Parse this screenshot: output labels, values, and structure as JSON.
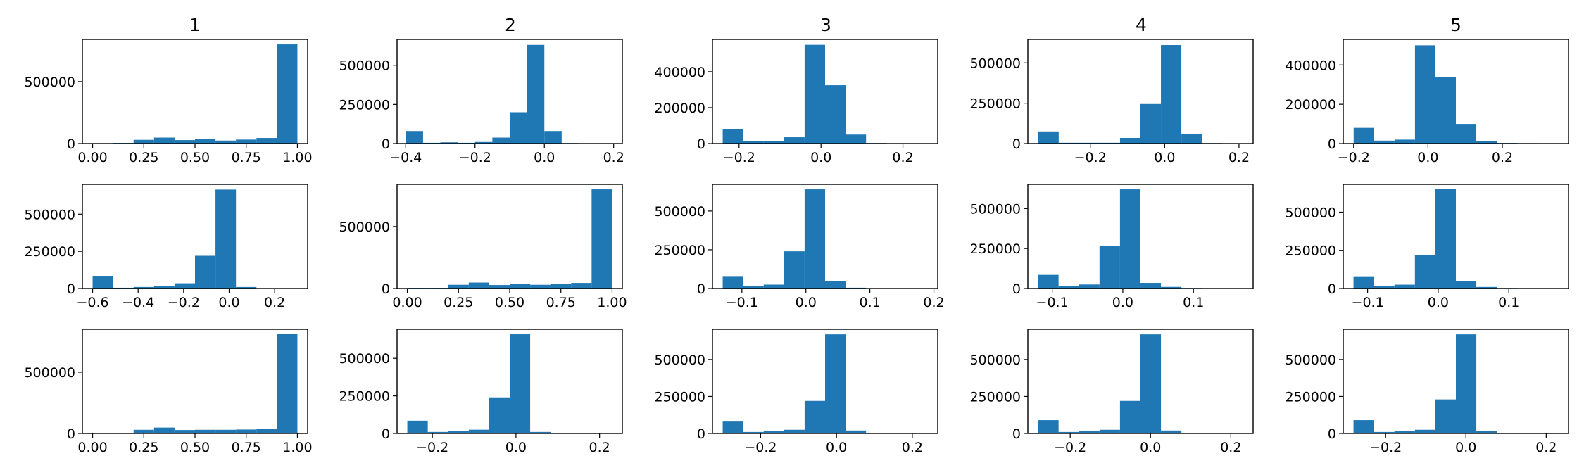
{
  "figure": {
    "column_titles": [
      "1",
      "2",
      "3",
      "4",
      "5"
    ]
  },
  "bar_color": "#1f77b4",
  "chart_data": [
    {
      "type": "bar",
      "row": 0,
      "col": 0,
      "title": "1",
      "edges": [
        0.0,
        0.1,
        0.2,
        0.3,
        0.4,
        0.5,
        0.6,
        0.7,
        0.8,
        0.9,
        1.0
      ],
      "values": [
        3000,
        5000,
        30000,
        48000,
        28000,
        38000,
        24000,
        32000,
        45000,
        800000
      ],
      "xlim": [
        -0.05,
        1.05
      ],
      "ylim": [
        0,
        840000
      ],
      "xticks": [
        0.0,
        0.25,
        0.5,
        0.75,
        1.0
      ],
      "xtick_labels": [
        "0.00",
        "0.25",
        "0.50",
        "0.75",
        "1.00"
      ],
      "yticks": [
        0,
        500000
      ],
      "ytick_labels": [
        "0",
        "500000"
      ]
    },
    {
      "type": "bar",
      "row": 0,
      "col": 1,
      "title": "2",
      "edges": [
        -0.4,
        -0.35,
        -0.3,
        -0.25,
        -0.2,
        -0.15,
        -0.1,
        -0.05,
        0.0,
        0.05,
        0.1
      ],
      "values": [
        80000,
        5000,
        8000,
        5000,
        10000,
        38000,
        200000,
        630000,
        80000,
        3000
      ],
      "xlim": [
        -0.425,
        0.225
      ],
      "ylim": [
        0,
        665000
      ],
      "xticks": [
        -0.4,
        -0.2,
        0.0,
        0.2
      ],
      "xtick_labels": [
        "−0.4",
        "−0.2",
        "0.0",
        "0.2"
      ],
      "yticks": [
        0,
        250000,
        500000
      ],
      "ytick_labels": [
        "0",
        "250000",
        "500000"
      ]
    },
    {
      "type": "bar",
      "row": 0,
      "col": 2,
      "title": "3",
      "edges": [
        -0.24,
        -0.19,
        -0.14,
        -0.09,
        -0.04,
        0.01,
        0.06,
        0.11,
        0.16,
        0.21,
        0.26
      ],
      "values": [
        80000,
        12000,
        12000,
        35000,
        550000,
        325000,
        50000,
        3000,
        2000,
        1000
      ],
      "xlim": [
        -0.265,
        0.285
      ],
      "ylim": [
        0,
        580000
      ],
      "xticks": [
        -0.2,
        0.0,
        0.2
      ],
      "xtick_labels": [
        "−0.2",
        "0.0",
        "0.2"
      ],
      "yticks": [
        0,
        200000,
        400000
      ],
      "ytick_labels": [
        "0",
        "200000",
        "400000"
      ]
    },
    {
      "type": "bar",
      "row": 0,
      "col": 3,
      "title": "4",
      "edges": [
        -0.34,
        -0.285,
        -0.23,
        -0.175,
        -0.12,
        -0.065,
        -0.01,
        0.045,
        0.1,
        0.155,
        0.21
      ],
      "values": [
        75000,
        5000,
        5000,
        5000,
        35000,
        245000,
        610000,
        60000,
        3000,
        2000
      ],
      "xlim": [
        -0.368,
        0.238
      ],
      "ylim": [
        0,
        645000
      ],
      "xticks": [
        -0.2,
        0.0,
        0.2
      ],
      "xtick_labels": [
        "−0.2",
        "0.0",
        "0.2"
      ],
      "yticks": [
        0,
        250000,
        500000
      ],
      "ytick_labels": [
        "0",
        "250000",
        "500000"
      ]
    },
    {
      "type": "bar",
      "row": 0,
      "col": 4,
      "title": "5",
      "edges": [
        -0.2,
        -0.145,
        -0.09,
        -0.035,
        0.02,
        0.075,
        0.13,
        0.185,
        0.24,
        0.295,
        0.35
      ],
      "values": [
        80000,
        15000,
        20000,
        500000,
        340000,
        100000,
        12000,
        3000,
        2000,
        1000
      ],
      "xlim": [
        -0.228,
        0.378
      ],
      "ylim": [
        0,
        530000
      ],
      "xticks": [
        -0.2,
        0.0,
        0.2
      ],
      "xtick_labels": [
        "−0.2",
        "0.0",
        "0.2"
      ],
      "yticks": [
        0,
        200000,
        400000
      ],
      "ytick_labels": [
        "0",
        "200000",
        "400000"
      ]
    },
    {
      "type": "bar",
      "row": 1,
      "col": 0,
      "title": "",
      "edges": [
        -0.6,
        -0.51,
        -0.42,
        -0.33,
        -0.24,
        -0.15,
        -0.06,
        0.03,
        0.12,
        0.21,
        0.3
      ],
      "values": [
        85000,
        5000,
        10000,
        15000,
        35000,
        220000,
        665000,
        10000,
        2000,
        1000
      ],
      "xlim": [
        -0.645,
        0.345
      ],
      "ylim": [
        0,
        700000
      ],
      "xticks": [
        -0.6,
        -0.4,
        -0.2,
        0.0,
        0.2
      ],
      "xtick_labels": [
        "−0.6",
        "−0.4",
        "−0.2",
        "0.0",
        "0.2"
      ],
      "yticks": [
        0,
        250000,
        500000
      ],
      "ytick_labels": [
        "0",
        "250000",
        "500000"
      ]
    },
    {
      "type": "bar",
      "row": 1,
      "col": 1,
      "title": "",
      "edges": [
        0.0,
        0.1,
        0.2,
        0.3,
        0.4,
        0.5,
        0.6,
        0.7,
        0.8,
        0.9,
        1.0
      ],
      "values": [
        5000,
        5000,
        30000,
        48000,
        28000,
        38000,
        30000,
        35000,
        45000,
        800000
      ],
      "xlim": [
        -0.05,
        1.05
      ],
      "ylim": [
        0,
        840000
      ],
      "xticks": [
        0.0,
        0.25,
        0.5,
        0.75,
        1.0
      ],
      "xtick_labels": [
        "0.00",
        "0.25",
        "0.50",
        "0.75",
        "1.00"
      ],
      "yticks": [
        0,
        500000
      ],
      "ytick_labels": [
        "0",
        "500000"
      ]
    },
    {
      "type": "bar",
      "row": 1,
      "col": 2,
      "title": "",
      "edges": [
        -0.13,
        -0.098,
        -0.066,
        -0.034,
        -0.002,
        0.03,
        0.062,
        0.094,
        0.126,
        0.158,
        0.19
      ],
      "values": [
        80000,
        15000,
        25000,
        240000,
        640000,
        50000,
        5000,
        2000,
        1000,
        1000
      ],
      "xlim": [
        -0.146,
        0.206
      ],
      "ylim": [
        0,
        672000
      ],
      "xticks": [
        -0.1,
        0.0,
        0.1,
        0.2
      ],
      "xtick_labels": [
        "−0.1",
        "0.0",
        "0.1",
        "0.2"
      ],
      "yticks": [
        0,
        250000,
        500000
      ],
      "ytick_labels": [
        "0",
        "250000",
        "500000"
      ]
    },
    {
      "type": "bar",
      "row": 1,
      "col": 3,
      "title": "",
      "edges": [
        -0.12,
        -0.091,
        -0.062,
        -0.033,
        -0.004,
        0.025,
        0.054,
        0.083,
        0.112,
        0.141,
        0.17
      ],
      "values": [
        85000,
        15000,
        25000,
        265000,
        620000,
        35000,
        10000,
        3000,
        1000,
        1000
      ],
      "xlim": [
        -0.1345,
        0.1845
      ],
      "ylim": [
        0,
        651000
      ],
      "xticks": [
        -0.1,
        0.0,
        0.1
      ],
      "xtick_labels": [
        "−0.1",
        "0.0",
        "0.1"
      ],
      "yticks": [
        0,
        250000,
        500000
      ],
      "ytick_labels": [
        "0",
        "250000",
        "500000"
      ]
    },
    {
      "type": "bar",
      "row": 1,
      "col": 4,
      "title": "",
      "edges": [
        -0.12,
        -0.091,
        -0.062,
        -0.033,
        -0.004,
        0.025,
        0.054,
        0.083,
        0.112,
        0.141,
        0.17
      ],
      "values": [
        80000,
        15000,
        25000,
        220000,
        650000,
        50000,
        10000,
        3000,
        1000,
        1000
      ],
      "xlim": [
        -0.1345,
        0.1845
      ],
      "ylim": [
        0,
        682000
      ],
      "xticks": [
        -0.1,
        0.0,
        0.1
      ],
      "xtick_labels": [
        "−0.1",
        "0.0",
        "0.1"
      ],
      "yticks": [
        0,
        250000,
        500000
      ],
      "ytick_labels": [
        "0",
        "250000",
        "500000"
      ]
    },
    {
      "type": "bar",
      "row": 2,
      "col": 0,
      "title": "",
      "edges": [
        0.0,
        0.1,
        0.2,
        0.3,
        0.4,
        0.5,
        0.6,
        0.7,
        0.8,
        0.9,
        1.0
      ],
      "values": [
        3000,
        5000,
        30000,
        48000,
        28000,
        30000,
        30000,
        32000,
        40000,
        810000
      ],
      "xlim": [
        -0.05,
        1.05
      ],
      "ylim": [
        0,
        850000
      ],
      "xticks": [
        0.0,
        0.25,
        0.5,
        0.75,
        1.0
      ],
      "xtick_labels": [
        "0.00",
        "0.25",
        "0.50",
        "0.75",
        "1.00"
      ],
      "yticks": [
        0,
        500000
      ],
      "ytick_labels": [
        "0",
        "500000"
      ]
    },
    {
      "type": "bar",
      "row": 2,
      "col": 1,
      "title": "",
      "edges": [
        -0.26,
        -0.211,
        -0.162,
        -0.113,
        -0.064,
        -0.015,
        0.034,
        0.083,
        0.132,
        0.181,
        0.23
      ],
      "values": [
        85000,
        10000,
        15000,
        25000,
        240000,
        660000,
        10000,
        3000,
        1000,
        1000
      ],
      "xlim": [
        -0.2845,
        0.2545
      ],
      "ylim": [
        0,
        693000
      ],
      "xticks": [
        -0.2,
        0.0,
        0.2
      ],
      "xtick_labels": [
        "−0.2",
        "0.0",
        "0.2"
      ],
      "yticks": [
        0,
        250000,
        500000
      ],
      "ytick_labels": [
        "0",
        "250000",
        "500000"
      ]
    },
    {
      "type": "bar",
      "row": 2,
      "col": 2,
      "title": "",
      "edges": [
        -0.3,
        -0.246,
        -0.192,
        -0.138,
        -0.084,
        -0.03,
        0.024,
        0.078,
        0.132,
        0.186,
        0.24
      ],
      "values": [
        85000,
        10000,
        15000,
        25000,
        220000,
        670000,
        20000,
        3000,
        1000,
        1000
      ],
      "xlim": [
        -0.327,
        0.267
      ],
      "ylim": [
        0,
        704000
      ],
      "xticks": [
        -0.2,
        0.0,
        0.2
      ],
      "xtick_labels": [
        "−0.2",
        "0.0",
        "0.2"
      ],
      "yticks": [
        0,
        250000,
        500000
      ],
      "ytick_labels": [
        "0",
        "250000",
        "500000"
      ]
    },
    {
      "type": "bar",
      "row": 2,
      "col": 3,
      "title": "",
      "edges": [
        -0.28,
        -0.229,
        -0.178,
        -0.127,
        -0.076,
        -0.025,
        0.026,
        0.077,
        0.128,
        0.179,
        0.23
      ],
      "values": [
        90000,
        10000,
        15000,
        25000,
        220000,
        670000,
        20000,
        3000,
        1000,
        1000
      ],
      "xlim": [
        -0.3055,
        0.2555
      ],
      "ylim": [
        0,
        704000
      ],
      "xticks": [
        -0.2,
        0.0,
        0.2
      ],
      "xtick_labels": [
        "−0.2",
        "0.0",
        "0.2"
      ],
      "yticks": [
        0,
        250000,
        500000
      ],
      "ytick_labels": [
        "0",
        "250000",
        "500000"
      ]
    },
    {
      "type": "bar",
      "row": 2,
      "col": 4,
      "title": "",
      "edges": [
        -0.28,
        -0.229,
        -0.178,
        -0.127,
        -0.076,
        -0.025,
        0.026,
        0.077,
        0.128,
        0.179,
        0.23
      ],
      "values": [
        90000,
        10000,
        15000,
        25000,
        230000,
        670000,
        15000,
        3000,
        1000,
        1000
      ],
      "xlim": [
        -0.3055,
        0.2555
      ],
      "ylim": [
        0,
        704000
      ],
      "xticks": [
        -0.2,
        0.0,
        0.2
      ],
      "xtick_labels": [
        "−0.2",
        "0.0",
        "0.2"
      ],
      "yticks": [
        0,
        250000,
        500000
      ],
      "ytick_labels": [
        "0",
        "250000",
        "500000"
      ]
    }
  ]
}
